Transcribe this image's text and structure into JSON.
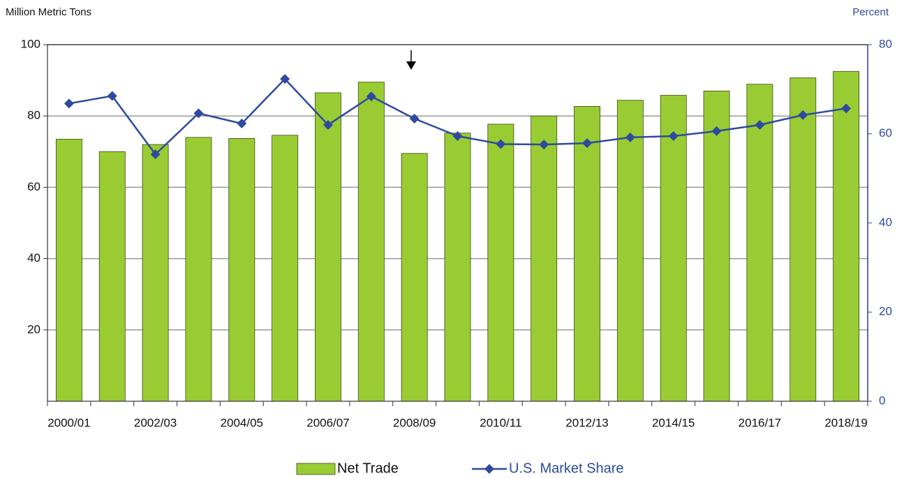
{
  "chart_data": {
    "type": "bar",
    "y_label": "Million Metric Tons",
    "y2_label": "Percent",
    "categories": [
      "2000/01",
      null,
      "2002/03",
      null,
      "2004/05",
      null,
      "2006/07",
      null,
      "2008/09",
      null,
      "2010/11",
      null,
      "2012/13",
      null,
      "2014/15",
      null,
      "2016/17",
      null,
      "2018/19"
    ],
    "series": [
      {
        "name": "Net Trade",
        "type": "bar",
        "color": "#99cc33",
        "values": [
          73.5,
          70,
          72,
          74,
          73.7,
          74.6,
          86.5,
          89.5,
          69.5,
          75.2,
          77.7,
          80,
          82.7,
          84.4,
          85.8,
          87,
          88.9,
          90.7,
          92.5
        ]
      },
      {
        "name": "U.S. Market Share",
        "type": "line",
        "axis": "y2",
        "color": "#2e4a9e",
        "values": [
          66.8,
          68.5,
          55.4,
          64.6,
          62.3,
          72.3,
          62,
          68.4,
          63.4,
          59.5,
          57.7,
          57.6,
          57.9,
          59.2,
          59.5,
          60.6,
          62,
          64.2,
          65.7
        ]
      }
    ],
    "ylim": [
      0,
      100
    ],
    "yticks": [
      20,
      40,
      60,
      80,
      100
    ],
    "y2lim": [
      0,
      80
    ],
    "y2ticks": [
      0,
      20,
      40,
      60,
      80
    ],
    "grid": true,
    "legend": "bottom"
  }
}
